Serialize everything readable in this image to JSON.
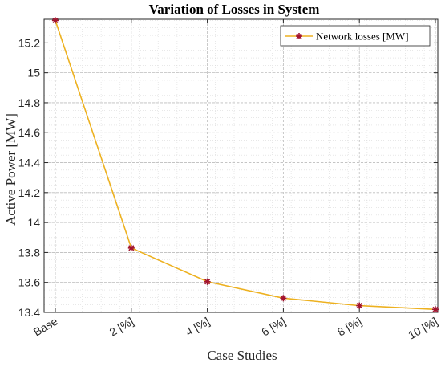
{
  "chart_data": {
    "type": "line",
    "title": "Variation of Losses in System",
    "xlabel": "Case Studies",
    "ylabel": "Active Power [MW]",
    "categories": [
      "Base",
      "2 [%]",
      "4 [%]",
      "6 [%]",
      "8 [%]",
      "10 [%]"
    ],
    "series": [
      {
        "name": "Network losses [MW]",
        "values": [
          15.35,
          13.83,
          13.605,
          13.495,
          13.445,
          13.42
        ],
        "color": "#EDB120",
        "marker_color": "#A2142F"
      }
    ],
    "ylim": [
      13.4,
      15.3
    ],
    "yticks": [
      13.4,
      13.6,
      13.8,
      14,
      14.2,
      14.4,
      14.6,
      14.8,
      15,
      15.2
    ],
    "grid": true,
    "minor_grid": true,
    "legend_position": "top-right"
  }
}
